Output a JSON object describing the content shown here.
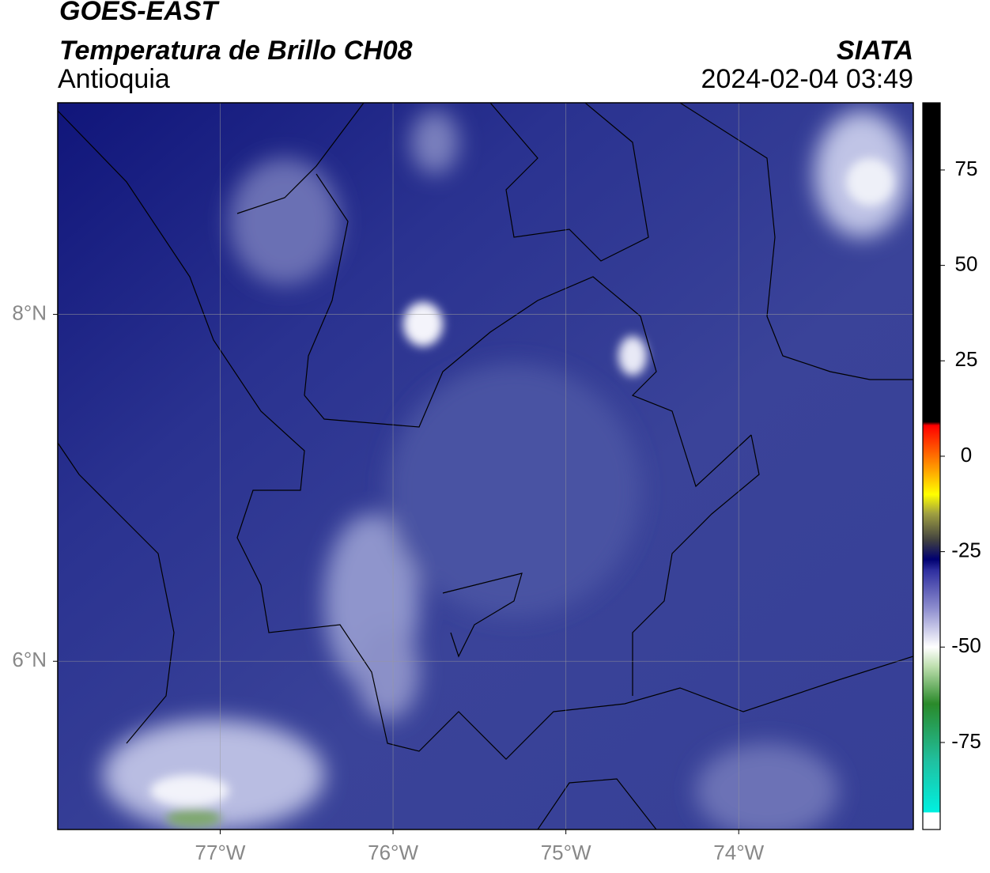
{
  "header": {
    "satellite": "GOES-EAST",
    "product": "Temperatura de Brillo CH08",
    "region": "Antioquia",
    "source": "SIATA",
    "datetime": "2024-02-04 03:49"
  },
  "map": {
    "xlim": [
      -77.94,
      -72.99
    ],
    "ylim": [
      5.03,
      9.22
    ],
    "xticks": [
      {
        "value": -77,
        "label": "77°W"
      },
      {
        "value": -76,
        "label": "76°W"
      },
      {
        "value": -75,
        "label": "75°W"
      },
      {
        "value": -74,
        "label": "74°W"
      }
    ],
    "yticks": [
      {
        "value": 6,
        "label": "6°N"
      },
      {
        "value": 8,
        "label": "8°N"
      }
    ],
    "grid": true
  },
  "colorbar": {
    "lim": [
      -97.8,
      92.6
    ],
    "ticks": [
      -75,
      -50,
      -25,
      0,
      25,
      50,
      75
    ]
  }
}
